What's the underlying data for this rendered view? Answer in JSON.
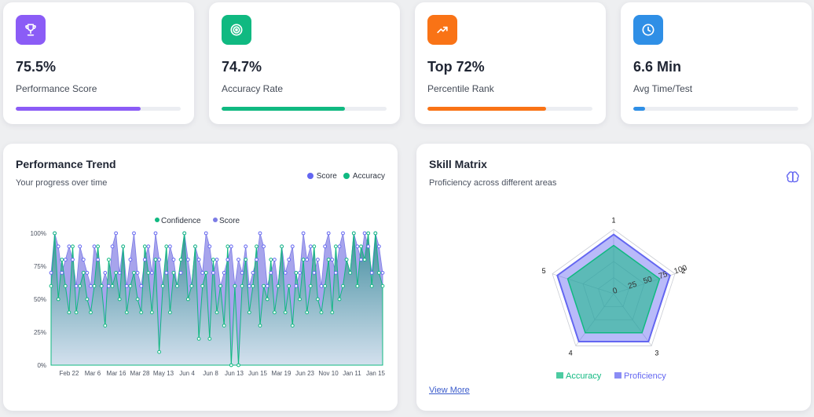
{
  "stats": [
    {
      "value": "75.5%",
      "label": "Performance Score",
      "progress": 0.755,
      "color": "#8b5cf6",
      "icon": "trophy-icon"
    },
    {
      "value": "74.7%",
      "label": "Accuracy Rate",
      "progress": 0.747,
      "color": "#10b981",
      "icon": "target-icon"
    },
    {
      "value": "Top 72%",
      "label": "Percentile Rank",
      "progress": 0.72,
      "color": "#f97316",
      "icon": "trending-up-icon"
    },
    {
      "value": "6.6 Min",
      "label": "Avg Time/Test",
      "progress": 0.07,
      "color": "#2f8fe6",
      "icon": "clock-icon"
    }
  ],
  "trend": {
    "title": "Performance Trend",
    "subtitle": "Your progress over time",
    "legend": [
      {
        "label": "Score",
        "color": "#6366f1"
      },
      {
        "label": "Accuracy",
        "color": "#10b981"
      }
    ]
  },
  "skill": {
    "title": "Skill Matrix",
    "subtitle": "Proficiency across different areas",
    "view_more": "View More",
    "icon": "brain-icon"
  },
  "chart_data": [
    {
      "type": "area",
      "title": "",
      "legend": [
        "Confidence",
        "Score"
      ],
      "series_colors": {
        "Confidence": "#10b981",
        "Score": "#7c7ce6"
      },
      "ylim": [
        0,
        100
      ],
      "yticks": [
        "0%",
        "25%",
        "50%",
        "75%",
        "100%"
      ],
      "xticks": [
        "Feb 22",
        "Mar 6",
        "Mar 16",
        "Mar 28",
        "May 13",
        "Jun 4",
        "Jun 8",
        "Jun 13",
        "Jun 15",
        "Mar 19",
        "Jun 23",
        "Nov 10",
        "Jan 11",
        "Jan 15"
      ],
      "series": [
        {
          "name": "Score",
          "values": [
            70,
            100,
            90,
            70,
            80,
            90,
            80,
            60,
            90,
            80,
            70,
            60,
            90,
            80,
            60,
            70,
            60,
            90,
            100,
            70,
            90,
            60,
            80,
            100,
            70,
            60,
            80,
            90,
            70,
            100,
            80,
            60,
            70,
            90,
            80,
            60,
            70,
            100,
            80,
            60,
            90,
            80,
            70,
            100,
            90,
            70,
            80,
            60,
            70,
            80,
            90,
            60,
            80,
            70,
            90,
            60,
            70,
            80,
            100,
            90,
            60,
            70,
            80,
            60,
            90,
            70,
            80,
            90,
            60,
            70,
            100,
            80,
            90,
            70,
            80,
            60,
            90,
            100,
            80,
            70,
            90,
            100,
            80,
            70,
            100,
            90,
            80,
            100,
            90,
            70,
            100,
            90,
            70
          ]
        },
        {
          "name": "Confidence",
          "values": [
            60,
            100,
            50,
            80,
            60,
            40,
            90,
            40,
            60,
            70,
            50,
            40,
            60,
            90,
            60,
            30,
            80,
            60,
            70,
            50,
            90,
            40,
            60,
            70,
            50,
            40,
            90,
            70,
            40,
            80,
            10,
            60,
            90,
            40,
            70,
            60,
            80,
            100,
            50,
            60,
            90,
            20,
            60,
            70,
            20,
            80,
            40,
            60,
            30,
            90,
            0,
            60,
            0,
            60,
            80,
            40,
            60,
            90,
            30,
            60,
            50,
            80,
            40,
            60,
            90,
            40,
            60,
            30,
            70,
            50,
            80,
            40,
            60,
            90,
            50,
            40,
            60,
            80,
            40,
            90,
            50,
            60,
            80,
            70,
            100,
            60,
            90,
            80,
            100,
            60,
            100,
            70,
            60
          ]
        }
      ]
    },
    {
      "type": "radar",
      "title": "",
      "axes": [
        "1",
        "2",
        "3",
        "4",
        "5"
      ],
      "rticks": [
        "0",
        "25",
        "50",
        "75",
        "100"
      ],
      "rlim": [
        0,
        100
      ],
      "legend": [
        "Accuracy",
        "Proficiency"
      ],
      "series": [
        {
          "name": "Accuracy",
          "color": "#10b981",
          "values": [
            75,
            75,
            75,
            75,
            75
          ]
        },
        {
          "name": "Proficiency",
          "color": "#6366f1",
          "values": [
            92,
            92,
            92,
            92,
            92
          ]
        }
      ]
    }
  ]
}
